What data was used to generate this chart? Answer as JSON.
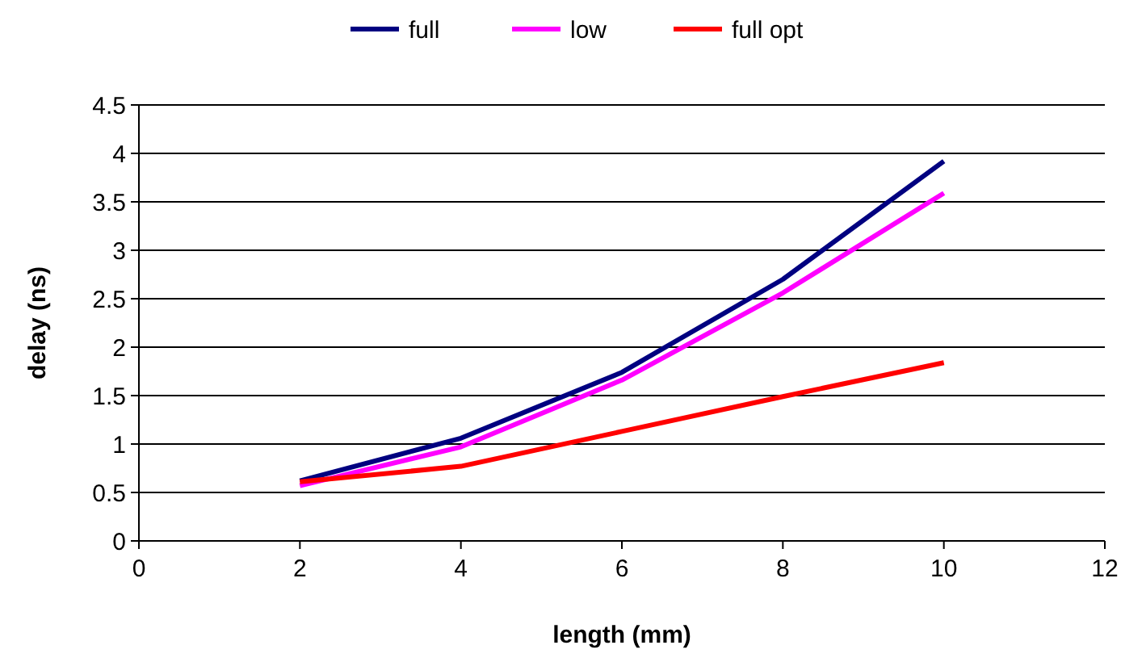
{
  "chart_data": {
    "type": "line",
    "xlabel": "length (mm)",
    "ylabel": "delay (ns)",
    "x": [
      2,
      4,
      6,
      8,
      10
    ],
    "series": [
      {
        "name": "full",
        "color": "#000080",
        "values": [
          0.62,
          1.06,
          1.74,
          2.7,
          3.92
        ]
      },
      {
        "name": "low",
        "color": "#ff00ff",
        "values": [
          0.57,
          0.97,
          1.66,
          2.56,
          3.59
        ]
      },
      {
        "name": "full opt",
        "color": "#ff0000",
        "values": [
          0.61,
          0.77,
          1.13,
          1.49,
          1.84
        ]
      }
    ],
    "xlim": [
      0,
      12
    ],
    "xticks": [
      0,
      2,
      4,
      6,
      8,
      10,
      12
    ],
    "ylim": [
      0,
      4.5
    ],
    "yticks": [
      0,
      0.5,
      1,
      1.5,
      2,
      2.5,
      3,
      3.5,
      4,
      4.5
    ],
    "grid": "y",
    "legend": "top",
    "marker": "none",
    "line_style": "solid"
  }
}
